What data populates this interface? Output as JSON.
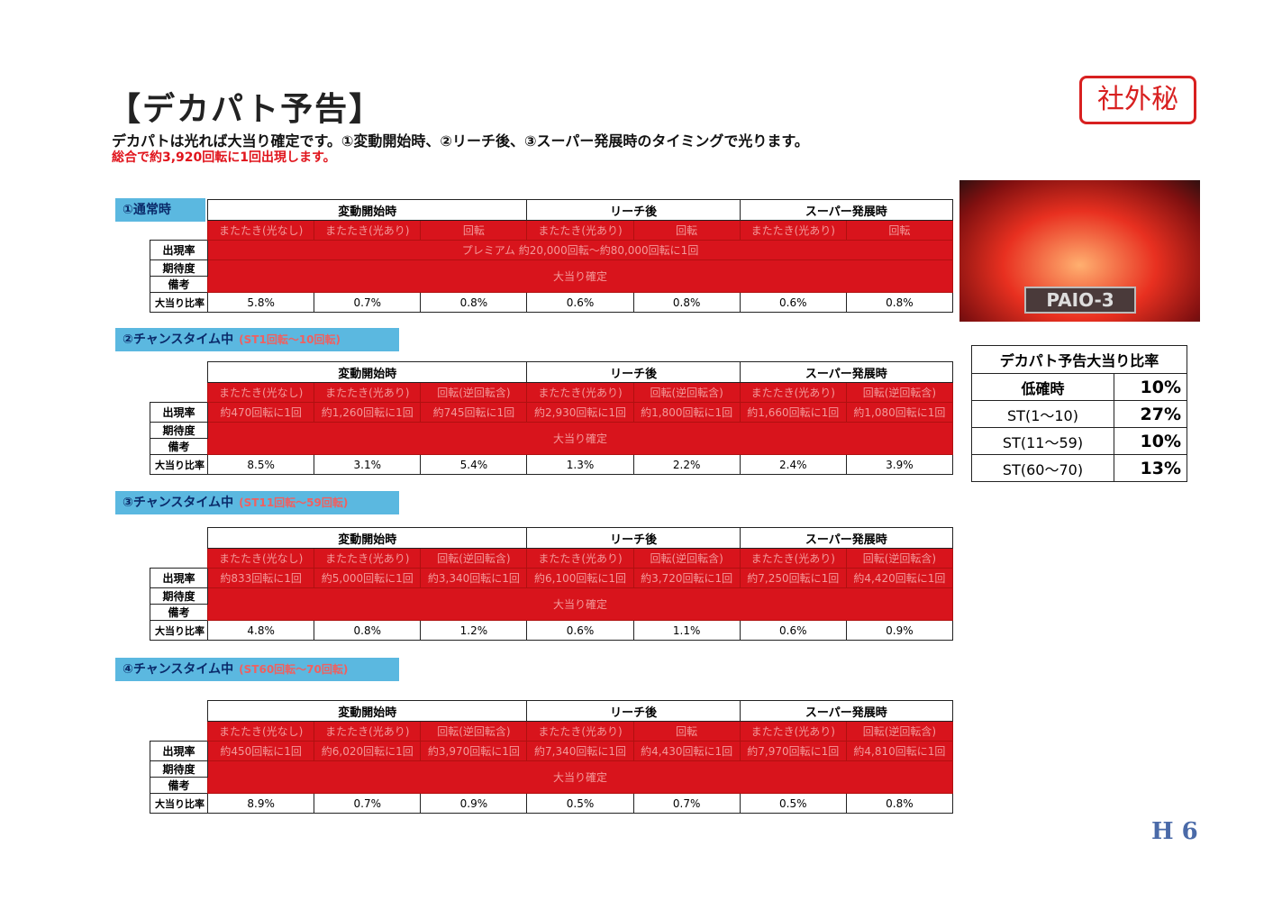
{
  "header": {
    "title": "【デカパト予告】",
    "line1": "デカパトは光れば大当り確定です。①変動開始時、②リーチ後、③スーパー発展時のタイミングで光ります。",
    "line2": "総合で約3,920回転に1回出現します。",
    "stamp": "社外秘"
  },
  "sections": [
    {
      "label": "①通常時",
      "groups": [
        "変動開始時",
        "リーチ後",
        "スーパー発展時"
      ],
      "columns": [
        "またたき(光なし)",
        "またたき(光あり)",
        "回転",
        "またたき(光あり)",
        "回転",
        "またたき(光あり)",
        "回転"
      ],
      "row_labels": [
        "出現率",
        "期待度",
        "備考",
        "大当り比率"
      ],
      "appearance_all": "プレミアム 約20,000回転～約80,000回転に1回",
      "outcome": "大当り確定",
      "ratios": [
        "5.8%",
        "0.7%",
        "0.8%",
        "0.6%",
        "0.8%",
        "0.6%",
        "0.8%"
      ]
    },
    {
      "label": "②チャンスタイム中",
      "sublabel": "(ST1回転～10回転)",
      "groups": [
        "変動開始時",
        "リーチ後",
        "スーパー発展時"
      ],
      "columns": [
        "またたき(光なし)",
        "またたき(光あり)",
        "回転(逆回転含)",
        "またたき(光あり)",
        "回転(逆回転含)",
        "またたき(光あり)",
        "回転(逆回転含)"
      ],
      "row_labels": [
        "出現率",
        "期待度",
        "備考",
        "大当り比率"
      ],
      "appearance": [
        "約470回転に1回",
        "約1,260回転に1回",
        "約745回転に1回",
        "約2,930回転に1回",
        "約1,800回転に1回",
        "約1,660回転に1回",
        "約1,080回転に1回"
      ],
      "outcome": "大当り確定",
      "ratios": [
        "8.5%",
        "3.1%",
        "5.4%",
        "1.3%",
        "2.2%",
        "2.4%",
        "3.9%"
      ]
    },
    {
      "label": "③チャンスタイム中",
      "sublabel": "(ST11回転～59回転)",
      "groups": [
        "変動開始時",
        "リーチ後",
        "スーパー発展時"
      ],
      "columns": [
        "またたき(光なし)",
        "またたき(光あり)",
        "回転(逆回転含)",
        "またたき(光あり)",
        "回転(逆回転含)",
        "またたき(光あり)",
        "回転(逆回転含)"
      ],
      "row_labels": [
        "出現率",
        "期待度",
        "備考",
        "大当り比率"
      ],
      "appearance": [
        "約833回転に1回",
        "約5,000回転に1回",
        "約3,340回転に1回",
        "約6,100回転に1回",
        "約3,720回転に1回",
        "約7,250回転に1回",
        "約4,420回転に1回"
      ],
      "outcome": "大当り確定",
      "ratios": [
        "4.8%",
        "0.8%",
        "1.2%",
        "0.6%",
        "1.1%",
        "0.6%",
        "0.9%"
      ]
    },
    {
      "label": "④チャンスタイム中",
      "sublabel": "(ST60回転～70回転)",
      "groups": [
        "変動開始時",
        "リーチ後",
        "スーパー発展時"
      ],
      "columns": [
        "またたき(光なし)",
        "またたき(光あり)",
        "回転(逆回転含)",
        "またたき(光あり)",
        "回転",
        "またたき(光あり)",
        "回転(逆回転含)"
      ],
      "row_labels": [
        "出現率",
        "期待度",
        "備考",
        "大当り比率"
      ],
      "appearance": [
        "約450回転に1回",
        "約6,020回転に1回",
        "約3,970回転に1回",
        "約7,340回転に1回",
        "約4,430回転に1回",
        "約7,970回転に1回",
        "約4,810回転に1回"
      ],
      "outcome": "大当り確定",
      "ratios": [
        "8.9%",
        "0.7%",
        "0.9%",
        "0.5%",
        "0.7%",
        "0.5%",
        "0.8%"
      ]
    }
  ],
  "image_caption": "PAIO-3",
  "ratio_table": {
    "title": "デカパト予告大当り比率",
    "rows": [
      [
        "低確時",
        "10%"
      ],
      [
        "ST(1～10)",
        "27%"
      ],
      [
        "ST(11～59)",
        "10%"
      ],
      [
        "ST(60～70)",
        "13%"
      ]
    ]
  },
  "page_number": "H 6"
}
